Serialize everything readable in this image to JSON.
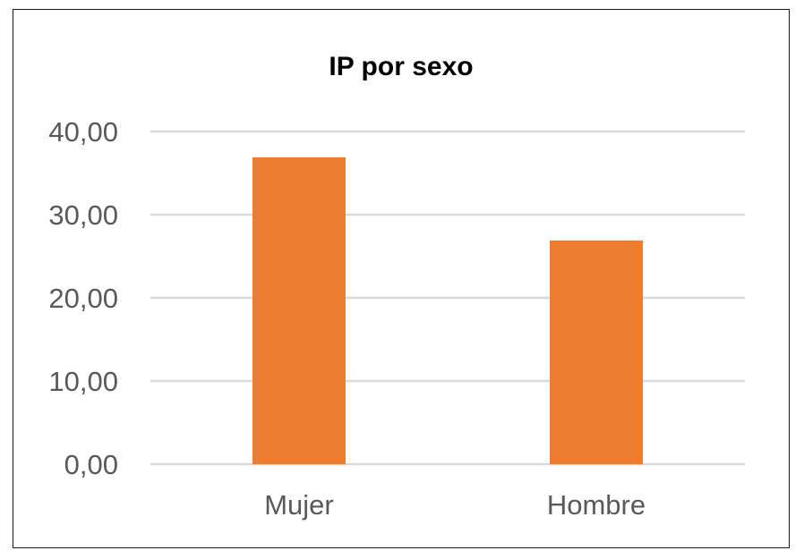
{
  "chart_data": {
    "type": "bar",
    "title": "IP por sexo",
    "categories": [
      "Mujer",
      "Hombre"
    ],
    "values": [
      36.9,
      26.9
    ],
    "ylim": [
      0,
      40
    ],
    "yticks": [
      "0,00",
      "10,00",
      "20,00",
      "30,00",
      "40,00"
    ],
    "ytick_values": [
      0,
      10,
      20,
      30,
      40
    ],
    "grid": true,
    "legend": "none",
    "colors": {
      "bar": "#ED7D31",
      "grid": "#D9D9D9",
      "text": "#595959"
    }
  }
}
